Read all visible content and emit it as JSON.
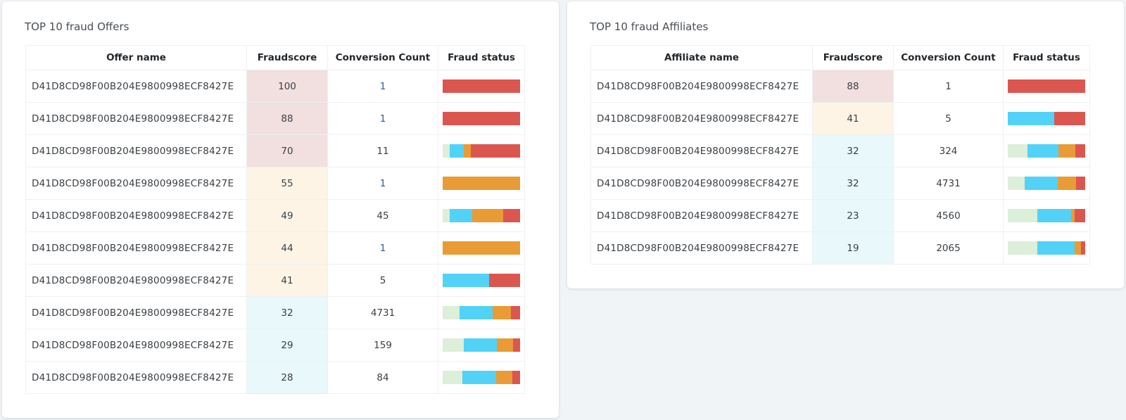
{
  "colors": {
    "page_bg": "#f1f4f7",
    "score_high": "#f2dfe0",
    "score_medium": "#fdf4e6",
    "score_low": "#e8f8fb",
    "status_safe": "#dcefd9",
    "status_low": "#52d2f7",
    "status_medium": "#e99c35",
    "status_high": "#dc5650"
  },
  "offers": {
    "title": "TOP 10 fraud Offers",
    "columns": [
      "Offer name",
      "Fraudscore",
      "Conversion Count",
      "Fraud status"
    ],
    "rows": [
      {
        "name": "D41D8CD98F00B204E9800998ECF8427E",
        "score": "100",
        "level": "high",
        "count": "1",
        "count_link": true,
        "status": [
          0,
          0,
          0,
          1
        ]
      },
      {
        "name": "D41D8CD98F00B204E9800998ECF8427E",
        "score": "88",
        "level": "high",
        "count": "1",
        "count_link": true,
        "status": [
          0,
          0,
          0,
          1
        ]
      },
      {
        "name": "D41D8CD98F00B204E9800998ECF8427E",
        "score": "70",
        "level": "high",
        "count": "11",
        "count_link": false,
        "status": [
          0.09,
          0.18,
          0.09,
          0.64
        ]
      },
      {
        "name": "D41D8CD98F00B204E9800998ECF8427E",
        "score": "55",
        "level": "medium",
        "count": "1",
        "count_link": true,
        "status": [
          0,
          0,
          1,
          0
        ]
      },
      {
        "name": "D41D8CD98F00B204E9800998ECF8427E",
        "score": "49",
        "level": "medium",
        "count": "45",
        "count_link": false,
        "status": [
          0.09,
          0.29,
          0.4,
          0.22
        ]
      },
      {
        "name": "D41D8CD98F00B204E9800998ECF8427E",
        "score": "44",
        "level": "medium",
        "count": "1",
        "count_link": true,
        "status": [
          0,
          0,
          1,
          0
        ]
      },
      {
        "name": "D41D8CD98F00B204E9800998ECF8427E",
        "score": "41",
        "level": "medium",
        "count": "5",
        "count_link": false,
        "status": [
          0,
          0.6,
          0,
          0.4
        ]
      },
      {
        "name": "D41D8CD98F00B204E9800998ECF8427E",
        "score": "32",
        "level": "low",
        "count": "4731",
        "count_link": false,
        "status": [
          0.22,
          0.43,
          0.23,
          0.12
        ]
      },
      {
        "name": "D41D8CD98F00B204E9800998ECF8427E",
        "score": "29",
        "level": "low",
        "count": "159",
        "count_link": false,
        "status": [
          0.27,
          0.43,
          0.21,
          0.09
        ]
      },
      {
        "name": "D41D8CD98F00B204E9800998ECF8427E",
        "score": "28",
        "level": "low",
        "count": "84",
        "count_link": false,
        "status": [
          0.25,
          0.44,
          0.21,
          0.1
        ]
      }
    ]
  },
  "affiliates": {
    "title": "TOP 10 fraud Affiliates",
    "columns": [
      "Affiliate name",
      "Fraudscore",
      "Conversion Count",
      "Fraud status"
    ],
    "rows": [
      {
        "name": "D41D8CD98F00B204E9800998ECF8427E",
        "score": "88",
        "level": "high",
        "count": "1",
        "count_link": false,
        "status": [
          0,
          0,
          0,
          1
        ]
      },
      {
        "name": "D41D8CD98F00B204E9800998ECF8427E",
        "score": "41",
        "level": "medium",
        "count": "5",
        "count_link": false,
        "status": [
          0,
          0.6,
          0,
          0.4
        ]
      },
      {
        "name": "D41D8CD98F00B204E9800998ECF8427E",
        "score": "32",
        "level": "low",
        "count": "324",
        "count_link": false,
        "status": [
          0.25,
          0.4,
          0.22,
          0.13
        ]
      },
      {
        "name": "D41D8CD98F00B204E9800998ECF8427E",
        "score": "32",
        "level": "low",
        "count": "4731",
        "count_link": false,
        "status": [
          0.22,
          0.43,
          0.23,
          0.12
        ]
      },
      {
        "name": "D41D8CD98F00B204E9800998ECF8427E",
        "score": "23",
        "level": "low",
        "count": "4560",
        "count_link": false,
        "status": [
          0.38,
          0.44,
          0.04,
          0.14
        ]
      },
      {
        "name": "D41D8CD98F00B204E9800998ECF8427E",
        "score": "19",
        "level": "low",
        "count": "2065",
        "count_link": false,
        "status": [
          0.38,
          0.48,
          0.09,
          0.05
        ]
      }
    ]
  }
}
